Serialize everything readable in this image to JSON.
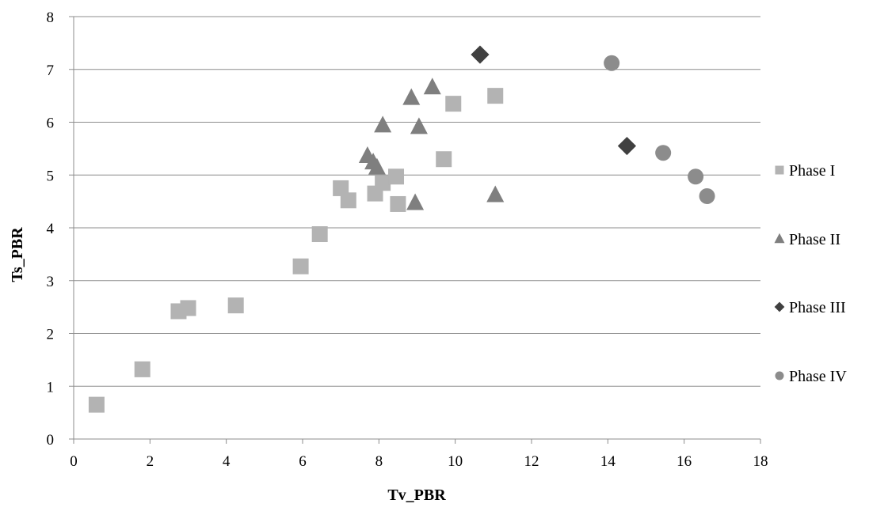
{
  "chart_data": {
    "type": "scatter",
    "title": "",
    "xlabel": "Tv_PBR",
    "ylabel": "Ts_PBR",
    "xlim": [
      0,
      18
    ],
    "ylim": [
      0,
      8
    ],
    "xticks": [
      0,
      2,
      4,
      6,
      8,
      10,
      12,
      14,
      16,
      18
    ],
    "yticks": [
      0,
      1,
      2,
      3,
      4,
      5,
      6,
      7,
      8
    ],
    "grid": "horizontal",
    "legend_position": "right",
    "series": [
      {
        "name": "Phase I",
        "marker": "square",
        "color": "#b3b3b3",
        "points": [
          [
            0.6,
            0.65
          ],
          [
            1.8,
            1.32
          ],
          [
            2.75,
            2.42
          ],
          [
            3.0,
            2.48
          ],
          [
            4.25,
            2.53
          ],
          [
            5.95,
            3.27
          ],
          [
            6.45,
            3.88
          ],
          [
            7.0,
            4.75
          ],
          [
            7.2,
            4.52
          ],
          [
            7.9,
            4.65
          ],
          [
            8.1,
            4.85
          ],
          [
            8.45,
            4.97
          ],
          [
            8.5,
            4.45
          ],
          [
            9.7,
            5.3
          ],
          [
            9.95,
            6.35
          ],
          [
            11.05,
            6.5
          ]
        ]
      },
      {
        "name": "Phase II",
        "marker": "triangle",
        "color": "#7f7f7f",
        "points": [
          [
            7.7,
            5.37
          ],
          [
            7.85,
            5.25
          ],
          [
            7.95,
            5.15
          ],
          [
            8.1,
            5.95
          ],
          [
            8.85,
            6.47
          ],
          [
            8.95,
            4.48
          ],
          [
            9.05,
            5.92
          ],
          [
            9.4,
            6.67
          ],
          [
            11.05,
            4.63
          ]
        ]
      },
      {
        "name": "Phase III",
        "marker": "diamond",
        "color": "#404040",
        "points": [
          [
            10.65,
            7.28
          ],
          [
            14.5,
            5.55
          ]
        ]
      },
      {
        "name": "Phase IV",
        "marker": "circle",
        "color": "#8c8c8c",
        "points": [
          [
            14.1,
            7.12
          ],
          [
            15.45,
            5.42
          ],
          [
            16.3,
            4.97
          ],
          [
            16.6,
            4.6
          ]
        ]
      }
    ]
  }
}
